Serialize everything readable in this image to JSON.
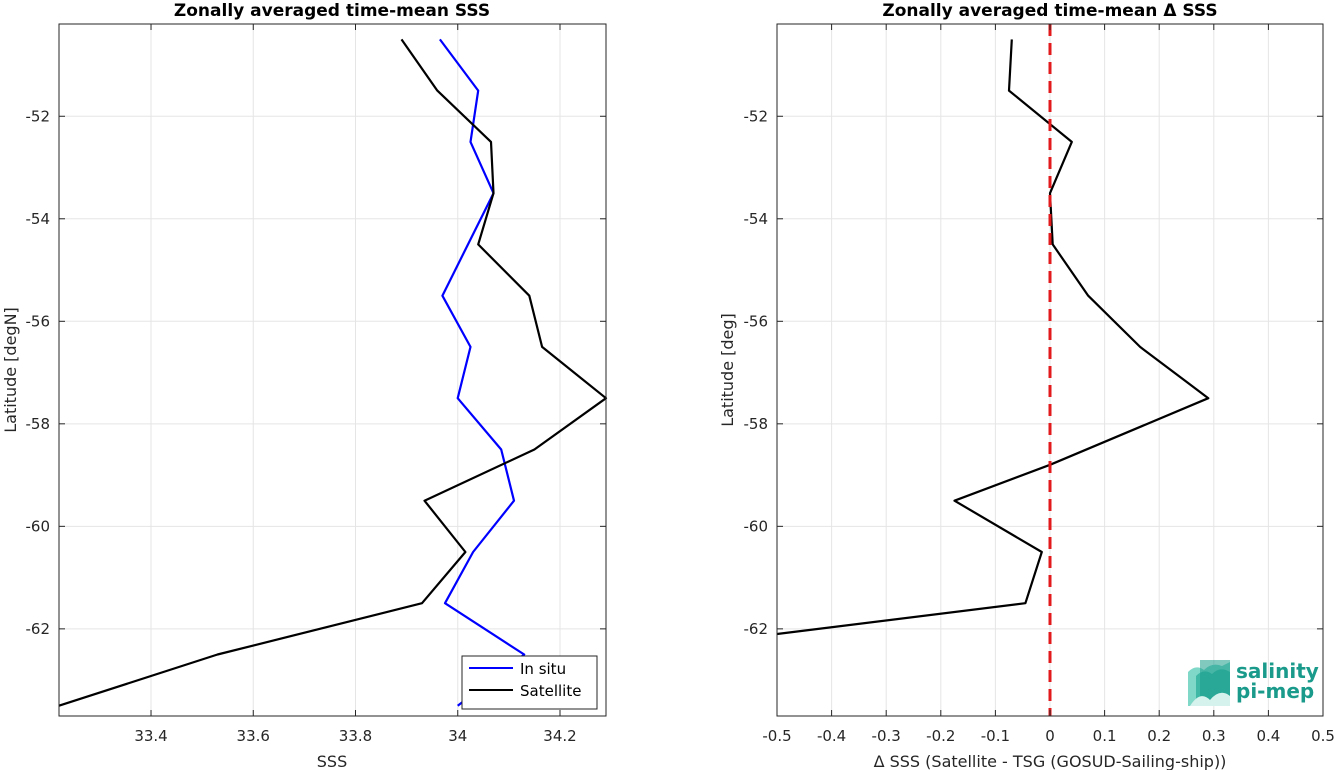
{
  "chart_data": [
    {
      "type": "line",
      "title": "Zonally averaged time-mean SSS",
      "xlabel": "SSS",
      "ylabel": "Latitude [degN]",
      "xlim": [
        33.22,
        34.29
      ],
      "ylim": [
        -63.7,
        -50.2
      ],
      "xticks": [
        33.4,
        33.6,
        33.8,
        34,
        34.2
      ],
      "xtick_labels": [
        "33.4",
        "33.6",
        "33.8",
        "34",
        "34.2"
      ],
      "yticks": [
        -52,
        -54,
        -56,
        -58,
        -60,
        -62
      ],
      "ytick_labels": [
        "-52",
        "-54",
        "-56",
        "-58",
        "-60",
        "-62"
      ],
      "grid": true,
      "legend_position": "bottom-right",
      "series": [
        {
          "name": "In situ",
          "color": "#0000ff",
          "points": [
            {
              "x": 33.965,
              "y": -50.5
            },
            {
              "x": 34.04,
              "y": -51.5
            },
            {
              "x": 34.025,
              "y": -52.5
            },
            {
              "x": 34.07,
              "y": -53.5
            },
            {
              "x": 34.02,
              "y": -54.5
            },
            {
              "x": 33.97,
              "y": -55.5
            },
            {
              "x": 34.025,
              "y": -56.5
            },
            {
              "x": 34.0,
              "y": -57.5
            },
            {
              "x": 34.085,
              "y": -58.5
            },
            {
              "x": 34.11,
              "y": -59.5
            },
            {
              "x": 34.03,
              "y": -60.5
            },
            {
              "x": 33.975,
              "y": -61.5
            },
            {
              "x": 34.13,
              "y": -62.5
            },
            {
              "x": 34.0,
              "y": -63.5
            }
          ]
        },
        {
          "name": "Satellite",
          "color": "#000000",
          "points": [
            {
              "x": 33.89,
              "y": -50.5
            },
            {
              "x": 33.96,
              "y": -51.5
            },
            {
              "x": 34.065,
              "y": -52.5
            },
            {
              "x": 34.07,
              "y": -53.5
            },
            {
              "x": 34.04,
              "y": -54.5
            },
            {
              "x": 34.14,
              "y": -55.5
            },
            {
              "x": 34.165,
              "y": -56.5
            },
            {
              "x": 34.29,
              "y": -57.5
            },
            {
              "x": 34.15,
              "y": -58.5
            },
            {
              "x": 33.935,
              "y": -59.5
            },
            {
              "x": 34.015,
              "y": -60.5
            },
            {
              "x": 33.93,
              "y": -61.5
            },
            {
              "x": 33.53,
              "y": -62.5
            },
            {
              "x": 33.22,
              "y": -63.5
            }
          ]
        }
      ]
    },
    {
      "type": "line",
      "title": "Zonally averaged time-mean Δ SSS",
      "xlabel": "Δ SSS (Satellite - TSG (GOSUD-Sailing-ship))",
      "ylabel": "Latitude [deg]",
      "xlim": [
        -0.5,
        0.5
      ],
      "ylim": [
        -63.7,
        -50.2
      ],
      "xticks": [
        -0.5,
        -0.4,
        -0.3,
        -0.2,
        -0.1,
        0,
        0.1,
        0.2,
        0.3,
        0.4,
        0.5
      ],
      "xtick_labels": [
        "-0.5",
        "-0.4",
        "-0.3",
        "-0.2",
        "-0.1",
        "0",
        "0.1",
        "0.2",
        "0.3",
        "0.4",
        "0.5"
      ],
      "yticks": [
        -52,
        -54,
        -56,
        -58,
        -60,
        -62
      ],
      "ytick_labels": [
        "-52",
        "-54",
        "-56",
        "-58",
        "-60",
        "-62"
      ],
      "grid": true,
      "reference_line": {
        "x": 0,
        "color": "#e31a1c",
        "style": "dashed"
      },
      "series": [
        {
          "color": "#000000",
          "points": [
            {
              "x": -0.07,
              "y": -50.5
            },
            {
              "x": -0.075,
              "y": -51.5
            },
            {
              "x": 0.04,
              "y": -52.5
            },
            {
              "x": 0.0,
              "y": -53.5
            },
            {
              "x": 0.005,
              "y": -54.5
            },
            {
              "x": 0.07,
              "y": -55.5
            },
            {
              "x": 0.165,
              "y": -56.5
            },
            {
              "x": 0.29,
              "y": -57.5
            },
            {
              "x": 0.0,
              "y": -58.8
            },
            {
              "x": -0.175,
              "y": -59.5
            },
            {
              "x": -0.015,
              "y": -60.5
            },
            {
              "x": -0.045,
              "y": -61.5
            },
            {
              "x": -0.5,
              "y": -62.1
            }
          ]
        }
      ]
    }
  ],
  "logo": {
    "line1": "salinity",
    "line2": "pi-mep",
    "color": "#1a9a8a"
  }
}
